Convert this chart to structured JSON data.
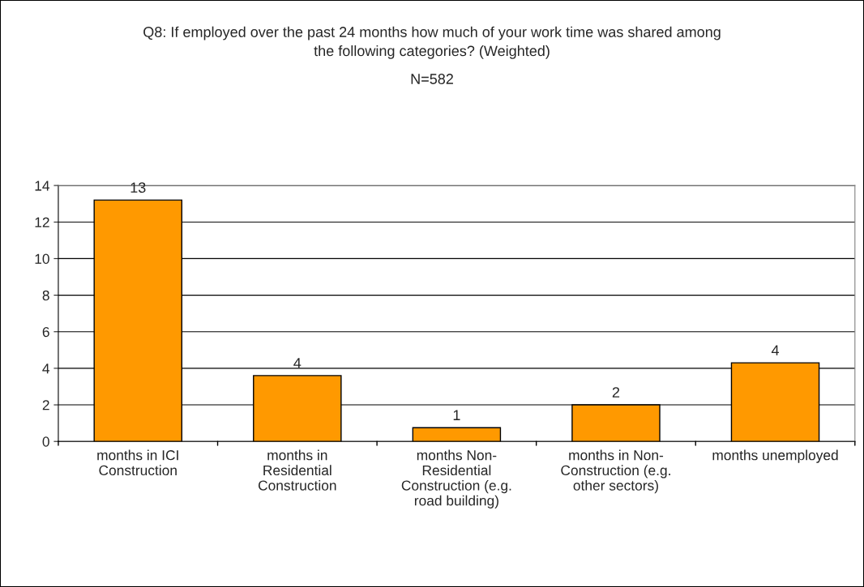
{
  "chart_data": {
    "type": "bar",
    "title": "Q8: If employed over the past 24 months how much of your work time was shared among the following categories? (Weighted)",
    "subtitle": "N=582",
    "categories": [
      "months in ICI Construction",
      "months in Residential Construction",
      "months Non-Residential Construction (e.g. road building)",
      "months in Non-Construction (e.g. other sectors)",
      "months unemployed"
    ],
    "values": [
      13.2,
      3.6,
      0.75,
      2.0,
      4.3
    ],
    "value_labels": [
      "13",
      "4",
      "1",
      "2",
      "4"
    ],
    "color": "#ff9900",
    "ylim": [
      0,
      14
    ],
    "yticks": [
      0,
      2,
      4,
      6,
      8,
      10,
      12,
      14
    ],
    "grid": "y",
    "legend": false
  }
}
